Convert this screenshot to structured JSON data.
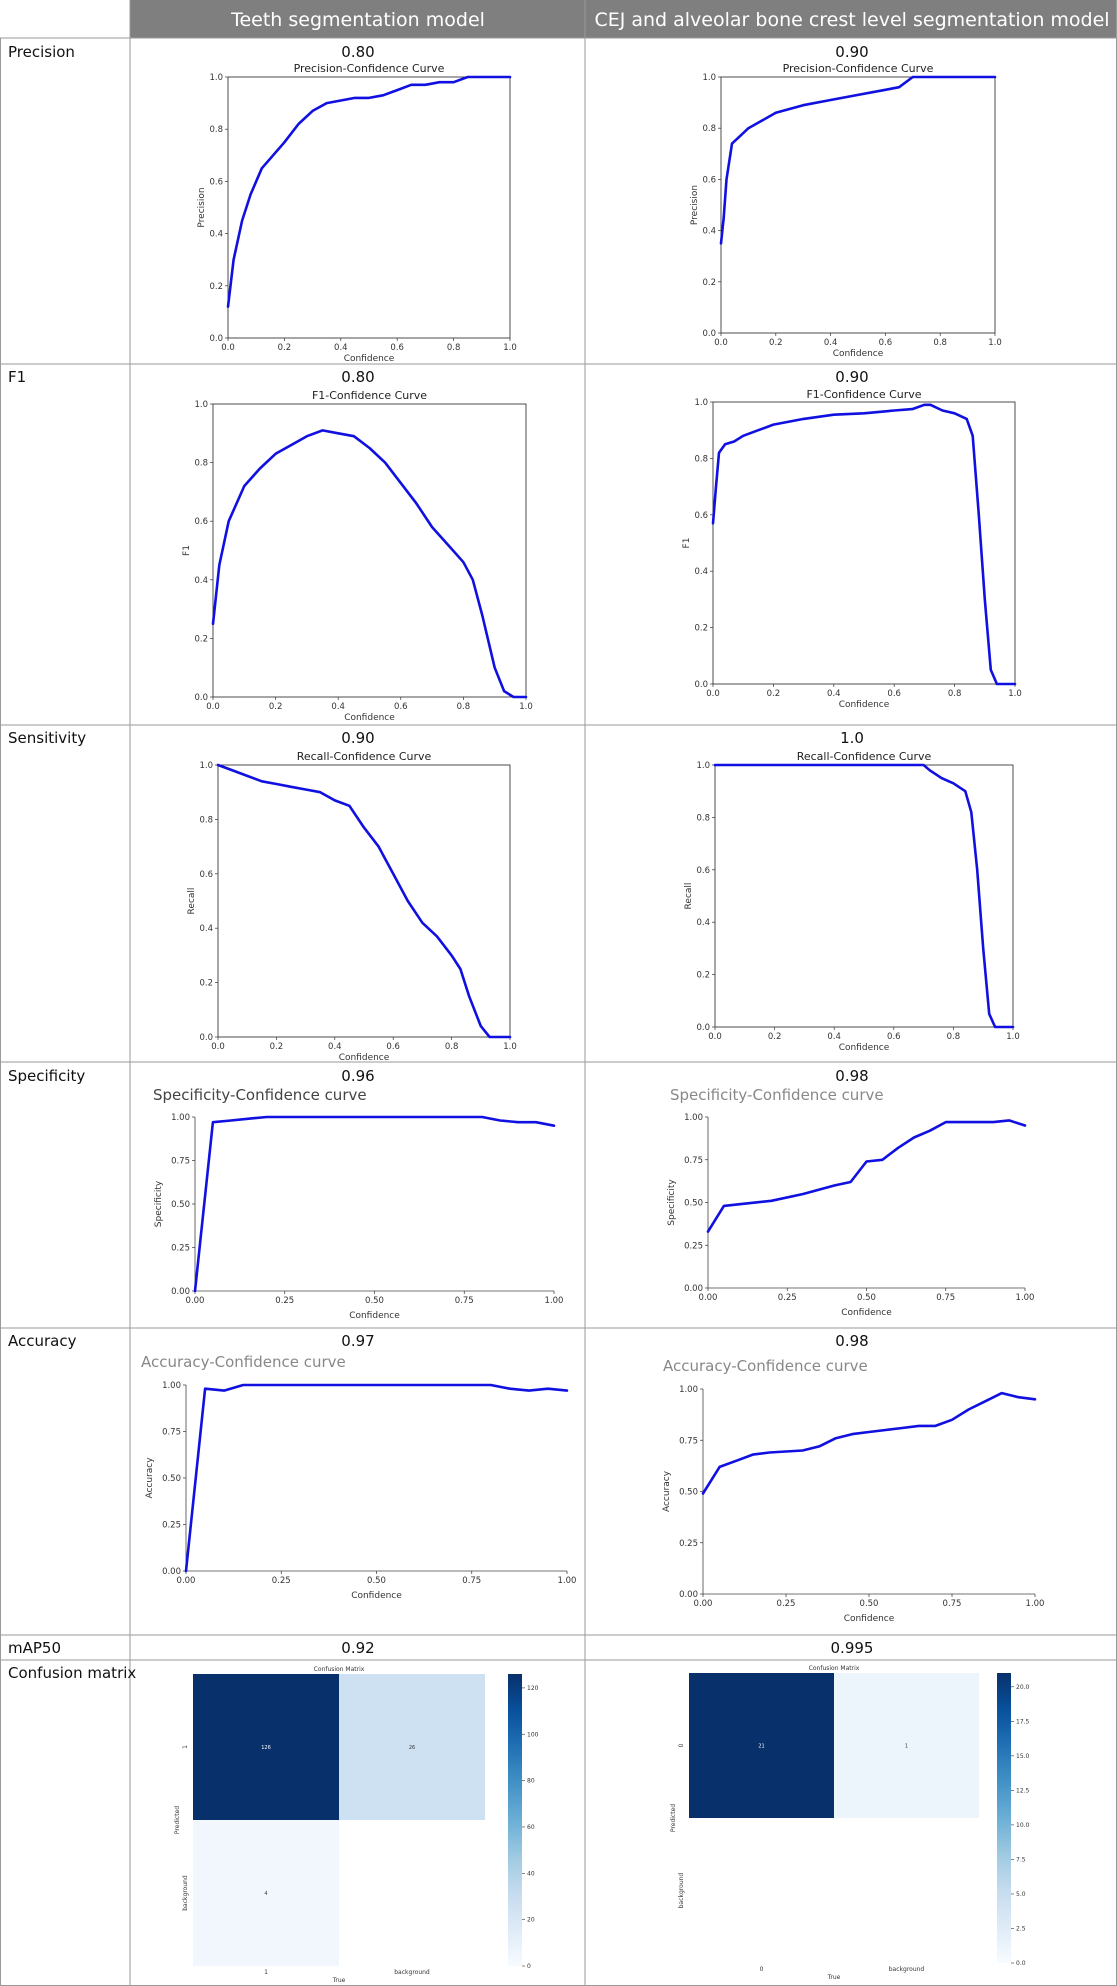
{
  "header": {
    "col1": "Teeth segmentation model",
    "col2": "CEJ and alveolar bone crest level segmentation model"
  },
  "rows": [
    {
      "label": "Precision",
      "v1": "0.80",
      "v2": "0.90"
    },
    {
      "label": "F1",
      "v1": "0.80",
      "v2": "0.90"
    },
    {
      "label": "Sensitivity",
      "v1": "0.90",
      "v2": "1.0"
    },
    {
      "label": "Specificity",
      "v1": "0.96",
      "v2": "0.98"
    },
    {
      "label": "Accuracy",
      "v1": "0.97",
      "v2": "0.98"
    },
    {
      "label": "mAP50",
      "v1": "0.92",
      "v2": "0.995"
    },
    {
      "label": "Confusion matrix",
      "v1": "",
      "v2": ""
    }
  ],
  "colors": {
    "curve": "#1010e0",
    "header_bg": "#7f7f7f",
    "cm_dark": "#08306b",
    "cm_light": "#cddff0",
    "cm_lightest": "#e6eff9"
  },
  "chart_data": [
    {
      "id": "teeth_precision",
      "type": "line",
      "title": "Precision-Confidence Curve",
      "xlabel": "Confidence",
      "ylabel": "Precision",
      "xlim": [
        0,
        1
      ],
      "ylim": [
        0,
        1
      ],
      "xticks": [
        "0.0",
        "0.2",
        "0.4",
        "0.6",
        "0.8",
        "1.0"
      ],
      "yticks": [
        "0.0",
        "0.2",
        "0.4",
        "0.6",
        "0.8",
        "1.0"
      ],
      "series": [
        {
          "x": [
            0,
            0.02,
            0.05,
            0.08,
            0.12,
            0.16,
            0.2,
            0.25,
            0.3,
            0.35,
            0.4,
            0.45,
            0.5,
            0.55,
            0.6,
            0.65,
            0.7,
            0.75,
            0.8,
            0.85,
            0.9,
            1.0
          ],
          "y": [
            0.12,
            0.3,
            0.45,
            0.55,
            0.65,
            0.7,
            0.75,
            0.82,
            0.87,
            0.9,
            0.91,
            0.92,
            0.92,
            0.93,
            0.95,
            0.97,
            0.97,
            0.98,
            0.98,
            1.0,
            1.0,
            1.0
          ]
        }
      ]
    },
    {
      "id": "cej_precision",
      "type": "line",
      "title": "Precision-Confidence Curve",
      "xlabel": "Confidence",
      "ylabel": "Precision",
      "xlim": [
        0,
        1
      ],
      "ylim": [
        0,
        1
      ],
      "xticks": [
        "0.0",
        "0.2",
        "0.4",
        "0.6",
        "0.8",
        "1.0"
      ],
      "yticks": [
        "0.0",
        "0.2",
        "0.4",
        "0.6",
        "0.8",
        "1.0"
      ],
      "series": [
        {
          "x": [
            0,
            0.01,
            0.02,
            0.04,
            0.07,
            0.1,
            0.15,
            0.2,
            0.3,
            0.4,
            0.5,
            0.6,
            0.65,
            0.7,
            0.75,
            0.8,
            1.0
          ],
          "y": [
            0.35,
            0.45,
            0.6,
            0.74,
            0.77,
            0.8,
            0.83,
            0.86,
            0.89,
            0.91,
            0.93,
            0.95,
            0.96,
            1.0,
            1.0,
            1.0,
            1.0
          ]
        }
      ]
    },
    {
      "id": "teeth_f1",
      "type": "line",
      "title": "F1-Confidence Curve",
      "xlabel": "Confidence",
      "ylabel": "F1",
      "xlim": [
        0,
        1
      ],
      "ylim": [
        0,
        1
      ],
      "xticks": [
        "0.0",
        "0.2",
        "0.4",
        "0.6",
        "0.8",
        "1.0"
      ],
      "yticks": [
        "0.0",
        "0.2",
        "0.4",
        "0.6",
        "0.8",
        "1.0"
      ],
      "series": [
        {
          "x": [
            0,
            0.02,
            0.05,
            0.1,
            0.15,
            0.2,
            0.25,
            0.3,
            0.35,
            0.4,
            0.45,
            0.5,
            0.55,
            0.6,
            0.65,
            0.7,
            0.75,
            0.8,
            0.83,
            0.86,
            0.9,
            0.93,
            0.96,
            1.0
          ],
          "y": [
            0.25,
            0.45,
            0.6,
            0.72,
            0.78,
            0.83,
            0.86,
            0.89,
            0.91,
            0.9,
            0.89,
            0.85,
            0.8,
            0.73,
            0.66,
            0.58,
            0.52,
            0.46,
            0.4,
            0.28,
            0.1,
            0.02,
            0.0,
            0.0
          ]
        }
      ]
    },
    {
      "id": "cej_f1",
      "type": "line",
      "title": "F1-Confidence Curve",
      "xlabel": "Confidence",
      "ylabel": "F1",
      "xlim": [
        0,
        1
      ],
      "ylim": [
        0,
        1
      ],
      "xticks": [
        "0.0",
        "0.2",
        "0.4",
        "0.6",
        "0.8",
        "1.0"
      ],
      "yticks": [
        "0.0",
        "0.2",
        "0.4",
        "0.6",
        "0.8",
        "1.0"
      ],
      "series": [
        {
          "x": [
            0,
            0.01,
            0.02,
            0.04,
            0.07,
            0.1,
            0.15,
            0.2,
            0.3,
            0.4,
            0.5,
            0.6,
            0.66,
            0.7,
            0.72,
            0.76,
            0.8,
            0.84,
            0.86,
            0.88,
            0.9,
            0.92,
            0.94,
            1.0
          ],
          "y": [
            0.57,
            0.7,
            0.82,
            0.85,
            0.86,
            0.88,
            0.9,
            0.92,
            0.94,
            0.955,
            0.96,
            0.97,
            0.975,
            0.99,
            0.99,
            0.97,
            0.96,
            0.94,
            0.88,
            0.6,
            0.3,
            0.05,
            0.0,
            0.0
          ]
        }
      ]
    },
    {
      "id": "teeth_recall",
      "type": "line",
      "title": "Recall-Confidence Curve",
      "xlabel": "Confidence",
      "ylabel": "Recall",
      "xlim": [
        0,
        1
      ],
      "ylim": [
        0,
        1
      ],
      "xticks": [
        "0.0",
        "0.2",
        "0.4",
        "0.6",
        "0.8",
        "1.0"
      ],
      "yticks": [
        "0.0",
        "0.2",
        "0.4",
        "0.6",
        "0.8",
        "1.0"
      ],
      "series": [
        {
          "x": [
            0,
            0.05,
            0.1,
            0.15,
            0.2,
            0.25,
            0.3,
            0.35,
            0.4,
            0.45,
            0.5,
            0.55,
            0.6,
            0.65,
            0.7,
            0.75,
            0.8,
            0.83,
            0.86,
            0.9,
            0.93,
            0.96,
            1.0
          ],
          "y": [
            1.0,
            0.98,
            0.96,
            0.94,
            0.93,
            0.92,
            0.91,
            0.9,
            0.87,
            0.85,
            0.77,
            0.7,
            0.6,
            0.5,
            0.42,
            0.37,
            0.3,
            0.25,
            0.15,
            0.04,
            0.0,
            0.0,
            0.0
          ]
        }
      ]
    },
    {
      "id": "cej_recall",
      "type": "line",
      "title": "Recall-Confidence Curve",
      "xlabel": "Confidence",
      "ylabel": "Recall",
      "xlim": [
        0,
        1
      ],
      "ylim": [
        0,
        1
      ],
      "xticks": [
        "0.0",
        "0.2",
        "0.4",
        "0.6",
        "0.8",
        "1.0"
      ],
      "yticks": [
        "0.0",
        "0.2",
        "0.4",
        "0.6",
        "0.8",
        "1.0"
      ],
      "series": [
        {
          "x": [
            0,
            0.2,
            0.4,
            0.6,
            0.7,
            0.72,
            0.76,
            0.8,
            0.84,
            0.86,
            0.88,
            0.9,
            0.92,
            0.94,
            1.0
          ],
          "y": [
            1.0,
            1.0,
            1.0,
            1.0,
            1.0,
            0.98,
            0.95,
            0.93,
            0.9,
            0.82,
            0.6,
            0.3,
            0.05,
            0.0,
            0.0
          ]
        }
      ]
    },
    {
      "id": "teeth_specificity",
      "type": "line",
      "title": "Specificity-Confidence curve",
      "xlabel": "Confidence",
      "ylabel": "Specificity",
      "xlim": [
        0,
        1
      ],
      "ylim": [
        0,
        1
      ],
      "xticks": [
        "0.00",
        "0.25",
        "0.50",
        "0.75",
        "1.00"
      ],
      "yticks": [
        "0.00",
        "0.25",
        "0.50",
        "0.75",
        "1.00"
      ],
      "series": [
        {
          "x": [
            0,
            0.05,
            0.1,
            0.15,
            0.2,
            0.4,
            0.6,
            0.8,
            0.85,
            0.9,
            0.95,
            1.0
          ],
          "y": [
            0.0,
            0.97,
            0.98,
            0.99,
            1.0,
            1.0,
            1.0,
            1.0,
            0.98,
            0.97,
            0.97,
            0.95
          ]
        }
      ]
    },
    {
      "id": "cej_specificity",
      "type": "line",
      "title": "Specificity-Confidence curve",
      "xlabel": "Confidence",
      "ylabel": "Specificity",
      "xlim": [
        0,
        1
      ],
      "ylim": [
        0,
        1
      ],
      "xticks": [
        "0.00",
        "0.25",
        "0.50",
        "0.75",
        "1.00"
      ],
      "yticks": [
        "0.00",
        "0.25",
        "0.50",
        "0.75",
        "1.00"
      ],
      "series": [
        {
          "x": [
            0,
            0.05,
            0.1,
            0.2,
            0.3,
            0.4,
            0.45,
            0.5,
            0.55,
            0.6,
            0.65,
            0.7,
            0.75,
            0.8,
            0.9,
            0.95,
            1.0
          ],
          "y": [
            0.33,
            0.48,
            0.49,
            0.51,
            0.55,
            0.6,
            0.62,
            0.74,
            0.75,
            0.82,
            0.88,
            0.92,
            0.97,
            0.97,
            0.97,
            0.98,
            0.95
          ]
        }
      ]
    },
    {
      "id": "teeth_accuracy",
      "type": "line",
      "title": "Accuracy-Confidence curve",
      "xlabel": "Confidence",
      "ylabel": "Accuracy",
      "xlim": [
        0,
        1
      ],
      "ylim": [
        0,
        1
      ],
      "xticks": [
        "0.00",
        "0.25",
        "0.50",
        "0.75",
        "1.00"
      ],
      "yticks": [
        "0.00",
        "0.25",
        "0.50",
        "0.75",
        "1.00"
      ],
      "series": [
        {
          "x": [
            0,
            0.05,
            0.1,
            0.15,
            0.4,
            0.6,
            0.8,
            0.85,
            0.9,
            0.95,
            1.0
          ],
          "y": [
            0.0,
            0.98,
            0.97,
            1.0,
            1.0,
            1.0,
            1.0,
            0.98,
            0.97,
            0.98,
            0.97
          ]
        }
      ]
    },
    {
      "id": "cej_accuracy",
      "type": "line",
      "title": "Accuracy-Confidence curve",
      "xlabel": "Confidence",
      "ylabel": "Accuracy",
      "xlim": [
        0,
        1
      ],
      "ylim": [
        0,
        1
      ],
      "xticks": [
        "0.00",
        "0.25",
        "0.50",
        "0.75",
        "1.00"
      ],
      "yticks": [
        "0.00",
        "0.25",
        "0.50",
        "0.75",
        "1.00"
      ],
      "series": [
        {
          "x": [
            0,
            0.05,
            0.1,
            0.15,
            0.2,
            0.3,
            0.35,
            0.4,
            0.45,
            0.5,
            0.55,
            0.6,
            0.65,
            0.7,
            0.75,
            0.8,
            0.85,
            0.9,
            0.95,
            1.0
          ],
          "y": [
            0.49,
            0.62,
            0.65,
            0.68,
            0.69,
            0.7,
            0.72,
            0.76,
            0.78,
            0.79,
            0.8,
            0.81,
            0.82,
            0.82,
            0.85,
            0.9,
            0.94,
            0.98,
            0.96,
            0.95
          ]
        }
      ]
    },
    {
      "id": "teeth_confusion",
      "type": "heatmap",
      "title": "Confusion Matrix",
      "xlabel": "True",
      "ylabel": "Predicted",
      "x_labels": [
        "1",
        "background"
      ],
      "y_labels": [
        "1",
        "background"
      ],
      "values": [
        [
          126,
          26
        ],
        [
          4,
          0
        ]
      ],
      "value_labels": [
        [
          "126",
          "26"
        ],
        [
          "4",
          ""
        ]
      ],
      "colorbar_ticks": [
        "0",
        "20",
        "40",
        "60",
        "80",
        "100",
        "120"
      ],
      "vmax": 126
    },
    {
      "id": "cej_confusion",
      "type": "heatmap",
      "title": "Confusion Matrix",
      "xlabel": "True",
      "ylabel": "Predicted",
      "x_labels": [
        "0",
        "background"
      ],
      "y_labels": [
        "0",
        "background"
      ],
      "values": [
        [
          21,
          1
        ],
        [
          0,
          0
        ]
      ],
      "value_labels": [
        [
          "21",
          "1"
        ],
        [
          "",
          ""
        ]
      ],
      "colorbar_ticks": [
        "0.0",
        "2.5",
        "5.0",
        "7.5",
        "10.0",
        "12.5",
        "15.0",
        "17.5",
        "20.0"
      ],
      "vmax": 21
    }
  ]
}
